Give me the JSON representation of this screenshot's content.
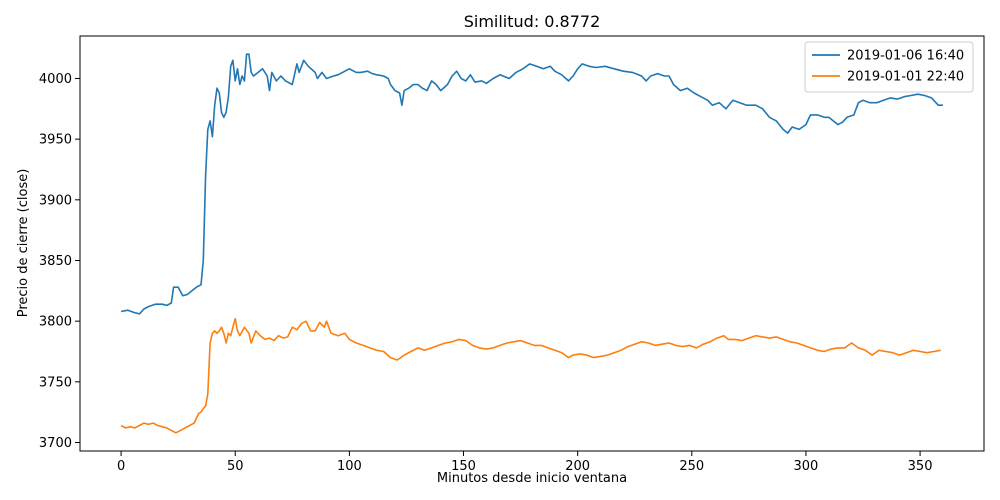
{
  "chart_data": {
    "type": "line",
    "title": "Similitud: 0.8772",
    "xlabel": "Minutos desde inicio ventana",
    "ylabel": "Precio de cierre (close)",
    "xlim": [
      -18,
      378
    ],
    "ylim": [
      3693,
      4035
    ],
    "xticks": [
      0,
      50,
      100,
      150,
      200,
      250,
      300,
      350
    ],
    "yticks": [
      3700,
      3750,
      3800,
      3850,
      3900,
      3950,
      4000
    ],
    "grid": false,
    "legend_position": "top-right",
    "series": [
      {
        "name": "2019-01-06 16:40",
        "color": "#1f77b4",
        "points": [
          [
            0,
            3808
          ],
          [
            3,
            3809
          ],
          [
            6,
            3807
          ],
          [
            8,
            3806
          ],
          [
            10,
            3810
          ],
          [
            12,
            3812
          ],
          [
            15,
            3814
          ],
          [
            18,
            3814
          ],
          [
            20,
            3813
          ],
          [
            22,
            3815
          ],
          [
            23,
            3828
          ],
          [
            25,
            3828
          ],
          [
            27,
            3821
          ],
          [
            29,
            3822
          ],
          [
            31,
            3825
          ],
          [
            33,
            3828
          ],
          [
            35,
            3830
          ],
          [
            36,
            3850
          ],
          [
            37,
            3920
          ],
          [
            38,
            3958
          ],
          [
            39,
            3965
          ],
          [
            40,
            3952
          ],
          [
            41,
            3978
          ],
          [
            42,
            3992
          ],
          [
            43,
            3988
          ],
          [
            44,
            3972
          ],
          [
            45,
            3968
          ],
          [
            46,
            3972
          ],
          [
            47,
            3985
          ],
          [
            48,
            4010
          ],
          [
            49,
            4015
          ],
          [
            50,
            3998
          ],
          [
            51,
            4008
          ],
          [
            52,
            3995
          ],
          [
            53,
            4002
          ],
          [
            54,
            3998
          ],
          [
            55,
            4020
          ],
          [
            56,
            4020
          ],
          [
            57,
            4005
          ],
          [
            58,
            4002
          ],
          [
            60,
            4005
          ],
          [
            62,
            4008
          ],
          [
            64,
            4002
          ],
          [
            65,
            3990
          ],
          [
            66,
            4005
          ],
          [
            68,
            3998
          ],
          [
            70,
            4002
          ],
          [
            72,
            3998
          ],
          [
            75,
            3995
          ],
          [
            77,
            4012
          ],
          [
            78,
            4005
          ],
          [
            80,
            4015
          ],
          [
            82,
            4010
          ],
          [
            85,
            4005
          ],
          [
            86,
            4000
          ],
          [
            88,
            4005
          ],
          [
            90,
            4000
          ],
          [
            93,
            4002
          ],
          [
            95,
            4003
          ],
          [
            97,
            4005
          ],
          [
            100,
            4008
          ],
          [
            103,
            4005
          ],
          [
            105,
            4005
          ],
          [
            108,
            4006
          ],
          [
            110,
            4004
          ],
          [
            112,
            4003
          ],
          [
            115,
            4002
          ],
          [
            117,
            4000
          ],
          [
            118,
            3995
          ],
          [
            120,
            3990
          ],
          [
            122,
            3988
          ],
          [
            123,
            3978
          ],
          [
            124,
            3990
          ],
          [
            126,
            3992
          ],
          [
            128,
            3995
          ],
          [
            130,
            3995
          ],
          [
            132,
            3992
          ],
          [
            134,
            3990
          ],
          [
            136,
            3998
          ],
          [
            138,
            3995
          ],
          [
            140,
            3990
          ],
          [
            143,
            3995
          ],
          [
            145,
            4002
          ],
          [
            147,
            4006
          ],
          [
            149,
            4000
          ],
          [
            151,
            3998
          ],
          [
            153,
            4003
          ],
          [
            155,
            3997
          ],
          [
            158,
            3998
          ],
          [
            160,
            3996
          ],
          [
            163,
            4000
          ],
          [
            166,
            4003
          ],
          [
            170,
            4000
          ],
          [
            173,
            4005
          ],
          [
            176,
            4008
          ],
          [
            179,
            4012
          ],
          [
            182,
            4010
          ],
          [
            185,
            4008
          ],
          [
            188,
            4010
          ],
          [
            190,
            4006
          ],
          [
            193,
            4003
          ],
          [
            196,
            3998
          ],
          [
            198,
            4002
          ],
          [
            200,
            4008
          ],
          [
            202,
            4012
          ],
          [
            205,
            4010
          ],
          [
            208,
            4009
          ],
          [
            212,
            4010
          ],
          [
            216,
            4008
          ],
          [
            220,
            4006
          ],
          [
            224,
            4005
          ],
          [
            228,
            4002
          ],
          [
            230,
            3998
          ],
          [
            232,
            4002
          ],
          [
            235,
            4004
          ],
          [
            238,
            4002
          ],
          [
            240,
            4002
          ],
          [
            242,
            3995
          ],
          [
            245,
            3990
          ],
          [
            248,
            3992
          ],
          [
            251,
            3988
          ],
          [
            254,
            3985
          ],
          [
            257,
            3982
          ],
          [
            259,
            3978
          ],
          [
            262,
            3980
          ],
          [
            265,
            3975
          ],
          [
            268,
            3982
          ],
          [
            271,
            3980
          ],
          [
            274,
            3978
          ],
          [
            278,
            3978
          ],
          [
            281,
            3975
          ],
          [
            284,
            3968
          ],
          [
            287,
            3965
          ],
          [
            290,
            3958
          ],
          [
            292,
            3955
          ],
          [
            294,
            3960
          ],
          [
            297,
            3958
          ],
          [
            300,
            3962
          ],
          [
            302,
            3970
          ],
          [
            305,
            3970
          ],
          [
            308,
            3968
          ],
          [
            310,
            3968
          ],
          [
            312,
            3965
          ],
          [
            314,
            3962
          ],
          [
            316,
            3964
          ],
          [
            318,
            3968
          ],
          [
            321,
            3970
          ],
          [
            323,
            3980
          ],
          [
            325,
            3982
          ],
          [
            328,
            3980
          ],
          [
            331,
            3980
          ],
          [
            334,
            3982
          ],
          [
            337,
            3984
          ],
          [
            340,
            3983
          ],
          [
            343,
            3985
          ],
          [
            346,
            3986
          ],
          [
            349,
            3987
          ],
          [
            352,
            3986
          ],
          [
            355,
            3984
          ],
          [
            358,
            3978
          ],
          [
            360,
            3978
          ]
        ]
      },
      {
        "name": "2019-01-01 22:40",
        "color": "#ff7f0e",
        "points": [
          [
            0,
            3714
          ],
          [
            2,
            3712
          ],
          [
            4,
            3713
          ],
          [
            6,
            3712
          ],
          [
            8,
            3714
          ],
          [
            10,
            3716
          ],
          [
            12,
            3715
          ],
          [
            14,
            3716
          ],
          [
            16,
            3714
          ],
          [
            18,
            3713
          ],
          [
            20,
            3712
          ],
          [
            22,
            3710
          ],
          [
            24,
            3708
          ],
          [
            26,
            3710
          ],
          [
            28,
            3712
          ],
          [
            30,
            3714
          ],
          [
            32,
            3716
          ],
          [
            34,
            3724
          ],
          [
            35,
            3725
          ],
          [
            36,
            3728
          ],
          [
            37,
            3730
          ],
          [
            38,
            3740
          ],
          [
            39,
            3782
          ],
          [
            40,
            3790
          ],
          [
            41,
            3792
          ],
          [
            42,
            3790
          ],
          [
            43,
            3792
          ],
          [
            44,
            3795
          ],
          [
            45,
            3790
          ],
          [
            46,
            3782
          ],
          [
            47,
            3790
          ],
          [
            48,
            3788
          ],
          [
            49,
            3795
          ],
          [
            50,
            3802
          ],
          [
            51,
            3792
          ],
          [
            52,
            3788
          ],
          [
            54,
            3795
          ],
          [
            56,
            3790
          ],
          [
            57,
            3782
          ],
          [
            59,
            3792
          ],
          [
            61,
            3788
          ],
          [
            63,
            3785
          ],
          [
            65,
            3786
          ],
          [
            67,
            3784
          ],
          [
            69,
            3788
          ],
          [
            71,
            3786
          ],
          [
            73,
            3787
          ],
          [
            75,
            3795
          ],
          [
            77,
            3793
          ],
          [
            79,
            3798
          ],
          [
            81,
            3800
          ],
          [
            83,
            3792
          ],
          [
            85,
            3792
          ],
          [
            87,
            3799
          ],
          [
            89,
            3795
          ],
          [
            90,
            3800
          ],
          [
            92,
            3790
          ],
          [
            95,
            3788
          ],
          [
            98,
            3790
          ],
          [
            100,
            3785
          ],
          [
            103,
            3782
          ],
          [
            106,
            3780
          ],
          [
            109,
            3778
          ],
          [
            112,
            3776
          ],
          [
            115,
            3775
          ],
          [
            118,
            3770
          ],
          [
            121,
            3768
          ],
          [
            124,
            3772
          ],
          [
            127,
            3775
          ],
          [
            130,
            3778
          ],
          [
            133,
            3776
          ],
          [
            136,
            3778
          ],
          [
            139,
            3780
          ],
          [
            142,
            3782
          ],
          [
            145,
            3783
          ],
          [
            148,
            3785
          ],
          [
            151,
            3784
          ],
          [
            154,
            3780
          ],
          [
            157,
            3778
          ],
          [
            160,
            3777
          ],
          [
            163,
            3778
          ],
          [
            166,
            3780
          ],
          [
            169,
            3782
          ],
          [
            172,
            3783
          ],
          [
            175,
            3784
          ],
          [
            178,
            3782
          ],
          [
            181,
            3780
          ],
          [
            184,
            3780
          ],
          [
            187,
            3778
          ],
          [
            190,
            3776
          ],
          [
            193,
            3774
          ],
          [
            196,
            3770
          ],
          [
            198,
            3772
          ],
          [
            201,
            3773
          ],
          [
            204,
            3772
          ],
          [
            207,
            3770
          ],
          [
            210,
            3771
          ],
          [
            213,
            3772
          ],
          [
            216,
            3774
          ],
          [
            219,
            3776
          ],
          [
            222,
            3779
          ],
          [
            225,
            3781
          ],
          [
            228,
            3783
          ],
          [
            231,
            3782
          ],
          [
            234,
            3780
          ],
          [
            237,
            3781
          ],
          [
            240,
            3782
          ],
          [
            243,
            3780
          ],
          [
            246,
            3779
          ],
          [
            249,
            3780
          ],
          [
            252,
            3778
          ],
          [
            255,
            3781
          ],
          [
            258,
            3783
          ],
          [
            261,
            3786
          ],
          [
            264,
            3788
          ],
          [
            266,
            3785
          ],
          [
            269,
            3785
          ],
          [
            272,
            3784
          ],
          [
            275,
            3786
          ],
          [
            278,
            3788
          ],
          [
            281,
            3787
          ],
          [
            284,
            3786
          ],
          [
            287,
            3787
          ],
          [
            290,
            3785
          ],
          [
            293,
            3783
          ],
          [
            296,
            3782
          ],
          [
            299,
            3780
          ],
          [
            302,
            3778
          ],
          [
            305,
            3776
          ],
          [
            308,
            3775
          ],
          [
            311,
            3777
          ],
          [
            314,
            3778
          ],
          [
            317,
            3778
          ],
          [
            320,
            3782
          ],
          [
            323,
            3778
          ],
          [
            326,
            3776
          ],
          [
            329,
            3772
          ],
          [
            332,
            3776
          ],
          [
            335,
            3775
          ],
          [
            338,
            3774
          ],
          [
            341,
            3772
          ],
          [
            344,
            3774
          ],
          [
            347,
            3776
          ],
          [
            350,
            3775
          ],
          [
            353,
            3774
          ],
          [
            356,
            3775
          ],
          [
            359,
            3776
          ]
        ]
      }
    ]
  }
}
